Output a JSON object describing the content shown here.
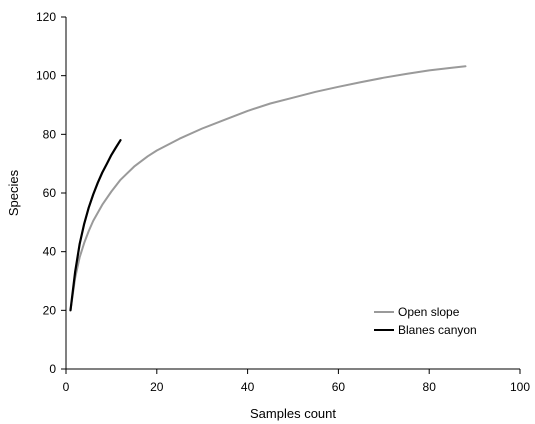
{
  "chart_data": {
    "type": "line",
    "title": "",
    "xlabel": "Samples count",
    "ylabel": "Species",
    "xlim": [
      0,
      100
    ],
    "ylim": [
      0,
      120
    ],
    "x_ticks": [
      0,
      20,
      40,
      60,
      80,
      100
    ],
    "y_ticks": [
      0,
      20,
      40,
      60,
      80,
      100,
      120
    ],
    "grid": false,
    "legend": "bottom-right",
    "series": [
      {
        "name": "Open slope",
        "color": "#9a9a9a",
        "x": [
          1,
          2,
          3,
          4,
          5,
          6,
          8,
          10,
          12,
          15,
          18,
          20,
          25,
          30,
          35,
          40,
          45,
          50,
          55,
          60,
          65,
          70,
          75,
          80,
          85,
          88
        ],
        "y": [
          20,
          31,
          38,
          43,
          47,
          50.5,
          56,
          60.5,
          64.5,
          69,
          72.5,
          74.5,
          78.5,
          82,
          85,
          88,
          90.5,
          92.5,
          94.5,
          96.2,
          97.8,
          99.3,
          100.6,
          101.8,
          102.7,
          103.2
        ]
      },
      {
        "name": "Blanes canyon",
        "color": "#000000",
        "x": [
          1,
          2,
          3,
          4,
          5,
          6,
          7,
          8,
          9,
          10,
          11,
          12
        ],
        "y": [
          20,
          33,
          42.5,
          49.5,
          55,
          59.5,
          63.5,
          67,
          70,
          73,
          75.5,
          78
        ]
      }
    ]
  }
}
